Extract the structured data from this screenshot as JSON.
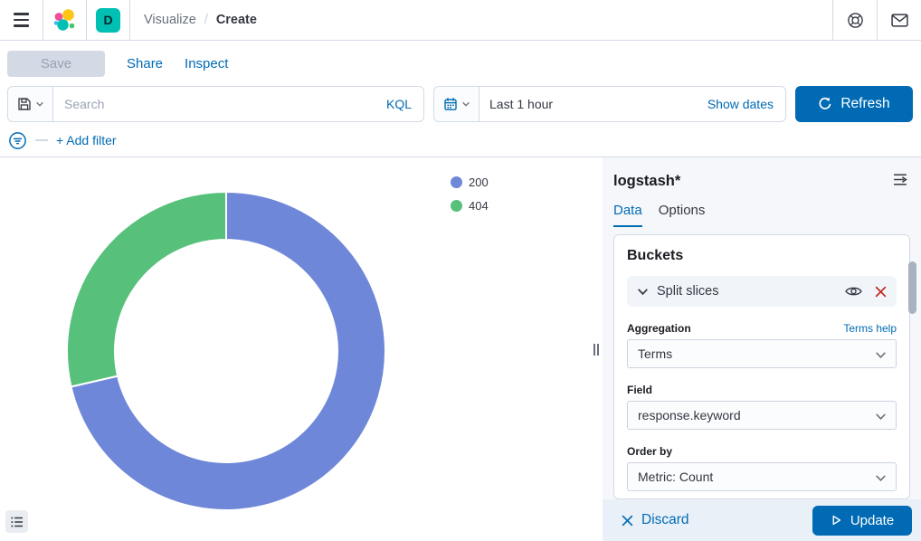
{
  "header": {
    "breadcrumbs": {
      "section": "Visualize",
      "separator": "/",
      "current": "Create"
    },
    "space_initial": "D"
  },
  "toolbar": {
    "save_label": "Save",
    "share_label": "Share",
    "inspect_label": "Inspect"
  },
  "query_bar": {
    "search_placeholder": "Search",
    "language_label": "KQL",
    "time_value": "Last 1 hour",
    "show_dates_label": "Show dates",
    "refresh_label": "Refresh"
  },
  "filter_bar": {
    "add_filter_label": "+ Add filter"
  },
  "chart_data": {
    "type": "pie",
    "subtype": "donut",
    "labels": [
      "200",
      "404"
    ],
    "values_pct": [
      71.4,
      28.6
    ],
    "colors": [
      "#6F87D8",
      "#57C17B"
    ],
    "start_angle_deg": 0,
    "clockwise": true,
    "inner_radius_ratio": 0.7,
    "legend_position": "top-right",
    "legend_entries": [
      "200",
      "404"
    ]
  },
  "sidebar": {
    "title": "logstash*",
    "tabs": [
      {
        "label": "Data"
      },
      {
        "label": "Options"
      }
    ],
    "active_tab": "Data",
    "buckets_heading": "Buckets",
    "bucket": {
      "name": "Split slices",
      "aggregation_label": "Aggregation",
      "aggregation_help": "Terms help",
      "aggregation_value": "Terms",
      "field_label": "Field",
      "field_value": "response.keyword",
      "order_by_label": "Order by",
      "order_by_value": "Metric: Count"
    },
    "footer": {
      "discard_label": "Discard",
      "update_label": "Update"
    }
  },
  "colors": {
    "primary": "#006BB4",
    "danger": "#BD271E",
    "space_badge": "#00BFB3",
    "panel_bg": "#F5F7FA",
    "border": "#D3DAE6",
    "slice_200": "#6F87D8",
    "slice_404": "#57C17B"
  },
  "icons": {
    "menu": "hamburger",
    "brand": "elastic-logo",
    "help": "life-ring",
    "mail": "envelope",
    "saved_query": "floppy-disk",
    "time_picker": "calendar",
    "refresh": "circular-arrow",
    "filter": "funnel-in-circle",
    "collapse_panel": "lines-arrow-right",
    "visibility": "eye",
    "remove": "cross",
    "legend_toggle": "list",
    "update": "play-triangle",
    "dropdown": "chevron-down"
  }
}
